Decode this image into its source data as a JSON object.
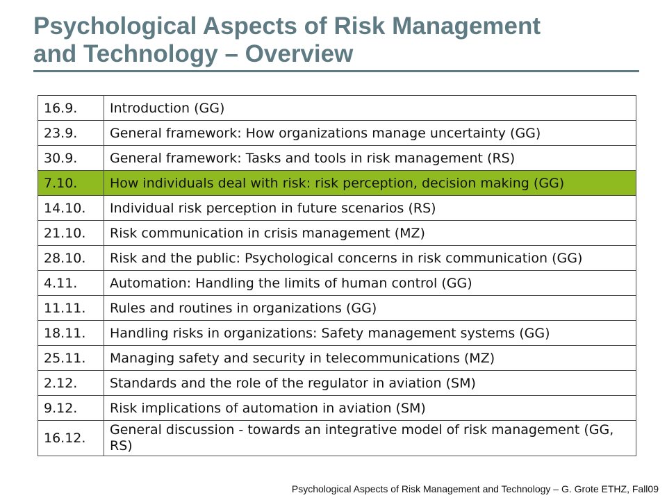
{
  "slide": {
    "title_line1": "Psychological Aspects of Risk Management",
    "title_line2": "and Technology – Overview",
    "footer": "Psychological Aspects of Risk Management and Technology – G. Grote ETHZ, Fall09"
  },
  "schedule": [
    {
      "date": "16.9.",
      "topic": "Introduction (GG)"
    },
    {
      "date": "23.9.",
      "topic": "General framework: How organizations manage uncertainty (GG)"
    },
    {
      "date": "30.9.",
      "topic": "General framework: Tasks and tools in risk management (RS)"
    },
    {
      "date": "7.10.",
      "topic": "How individuals deal with risk: risk perception, decision making (GG)"
    },
    {
      "date": "14.10.",
      "topic": "Individual risk perception in future scenarios (RS)"
    },
    {
      "date": "21.10.",
      "topic": "Risk communication in crisis management (MZ)"
    },
    {
      "date": "28.10.",
      "topic": "Risk and the public: Psychological concerns in risk communication (GG)"
    },
    {
      "date": "4.11.",
      "topic": "Automation: Handling the limits of human control (GG)"
    },
    {
      "date": "11.11.",
      "topic": "Rules and routines in organizations (GG)"
    },
    {
      "date": "18.11.",
      "topic": "Handling risks in organizations: Safety management systems (GG)"
    },
    {
      "date": "25.11.",
      "topic": "Managing safety and security in telecommunications (MZ)"
    },
    {
      "date": "2.12.",
      "topic": "Standards and the role of the regulator in aviation (SM)"
    },
    {
      "date": "9.12.",
      "topic": "Risk implications of automation in aviation (SM)"
    },
    {
      "date": "16.12.",
      "topic": "General discussion - towards an integrative model of risk management (GG, RS)"
    }
  ],
  "colors": {
    "title": "#5e7a82",
    "highlight_row": "#8fba20"
  }
}
